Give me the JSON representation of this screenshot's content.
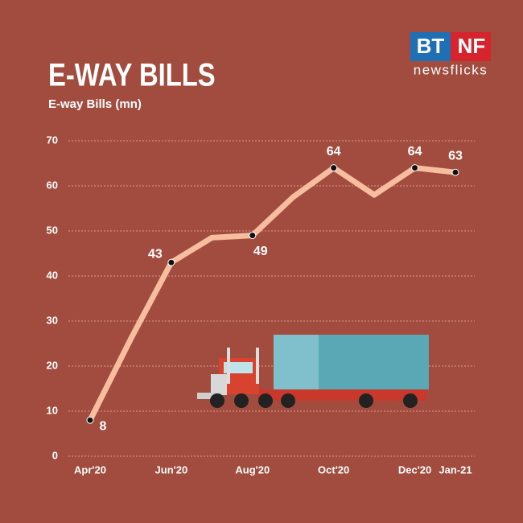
{
  "logo": {
    "left": "BT",
    "right": "NF",
    "tagline": "newsflicks"
  },
  "chart_data": {
    "type": "line",
    "title": "E-WAY BILLS",
    "y_label": "E-way Bills (mn)",
    "categories": [
      "Apr'20",
      null,
      "Jun'20",
      null,
      "Aug'20",
      null,
      "Oct'20",
      null,
      "Dec'20",
      "Jan-21"
    ],
    "values": [
      8,
      26,
      43,
      48.5,
      49,
      57.5,
      64,
      58,
      64,
      63
    ],
    "color": "#f6bd9e",
    "ylim": [
      0,
      70
    ],
    "yticks": [
      0,
      10,
      20,
      30,
      40,
      50,
      60,
      70
    ],
    "grid": true
  }
}
